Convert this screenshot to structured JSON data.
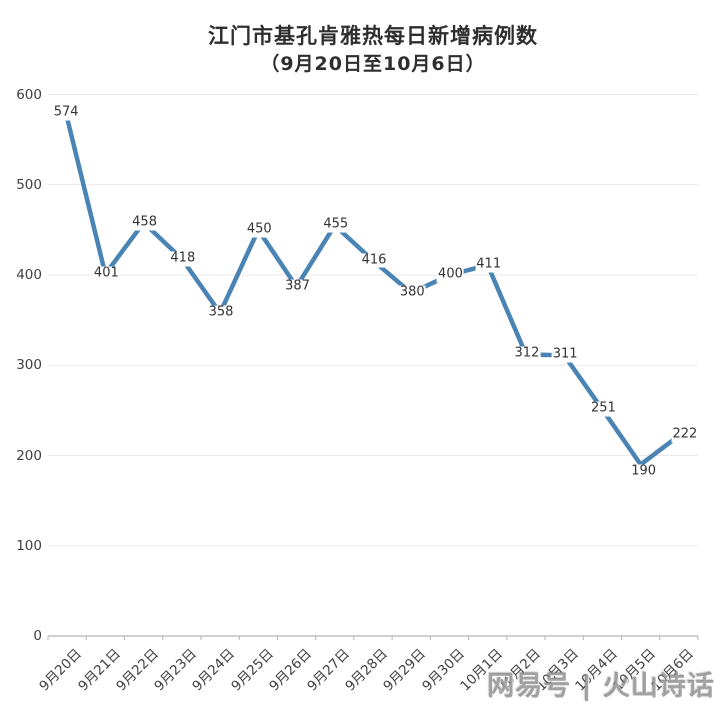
{
  "title": {
    "line1": "江门市基孔肯雅热每日新增病例数",
    "line2": "（9月20日至10月6日）"
  },
  "watermark": "网易号 | 火山诗话",
  "colors": {
    "line": "#4a84b4",
    "grid": "#e9e9e9",
    "axis": "#b5b5b5",
    "tick": "#b5b5b5",
    "axis_text": "#404040",
    "data_label_text": "#333333",
    "title_text": "#2e2e2e",
    "background": "#ffffff",
    "watermark_text": "#878787"
  },
  "chart_data": {
    "type": "line",
    "title": "江门市基孔肯雅热每日新增病例数（9月20日至10月6日）",
    "categories": [
      "9月20日",
      "9月21日",
      "9月22日",
      "9月23日",
      "9月24日",
      "9月25日",
      "9月26日",
      "9月27日",
      "9月28日",
      "9月29日",
      "9月30日",
      "10月1日",
      "10月2日",
      "10月3日",
      "10月4日",
      "10月5日",
      "10月6日"
    ],
    "values": [
      574,
      401,
      458,
      418,
      358,
      450,
      387,
      455,
      416,
      380,
      400,
      411,
      312,
      311,
      251,
      190,
      222
    ],
    "series_name": "每日新增病例数",
    "xlabel": "",
    "ylabel": "",
    "ylim": [
      0,
      600
    ],
    "yticks": [
      0,
      100,
      200,
      300,
      400,
      500,
      600
    ],
    "grid": "horizontal",
    "legend": "none",
    "data_labels": true,
    "x_tick_style": "between-categories",
    "x_label_rotation": 45
  }
}
